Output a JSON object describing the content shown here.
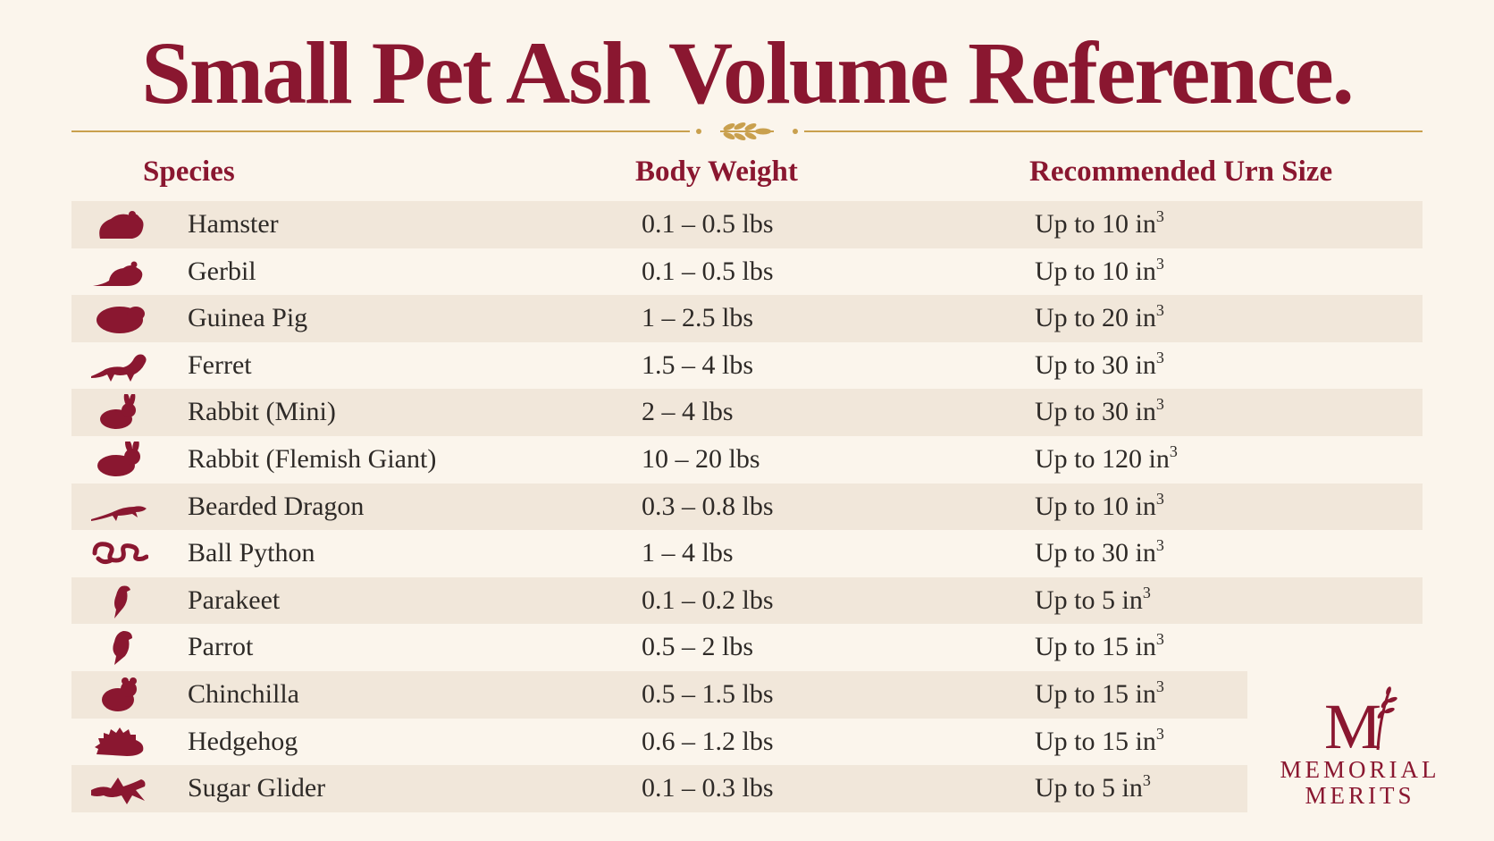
{
  "title": "Small Pet Ash Volume Reference.",
  "columns": {
    "species": "Species",
    "weight": "Body Weight",
    "urn": "Recommended Urn Size"
  },
  "unit_superscript": "3",
  "rows": [
    {
      "species": "Hamster",
      "icon": "hamster-icon",
      "weight": "0.1 – 0.5 lbs",
      "urn": "Up to 10 in"
    },
    {
      "species": "Gerbil",
      "icon": "gerbil-icon",
      "weight": "0.1 – 0.5 lbs",
      "urn": "Up to 10 in"
    },
    {
      "species": "Guinea Pig",
      "icon": "guinea-pig-icon",
      "weight": "1 – 2.5 lbs",
      "urn": "Up to 20 in"
    },
    {
      "species": "Ferret",
      "icon": "ferret-icon",
      "weight": "1.5 – 4 lbs",
      "urn": "Up to 30 in"
    },
    {
      "species": "Rabbit (Mini)",
      "icon": "rabbit-mini-icon",
      "weight": "2 – 4 lbs",
      "urn": "Up to 30 in"
    },
    {
      "species": "Rabbit (Flemish Giant)",
      "icon": "rabbit-giant-icon",
      "weight": "10 – 20 lbs",
      "urn": "Up to 120 in"
    },
    {
      "species": "Bearded Dragon",
      "icon": "bearded-dragon-icon",
      "weight": "0.3 – 0.8 lbs",
      "urn": "Up to 10 in"
    },
    {
      "species": "Ball Python",
      "icon": "snake-icon",
      "weight": "1 – 4 lbs",
      "urn": "Up to 30 in"
    },
    {
      "species": "Parakeet",
      "icon": "parakeet-icon",
      "weight": "0.1 – 0.2 lbs",
      "urn": "Up to 5 in"
    },
    {
      "species": "Parrot",
      "icon": "parrot-icon",
      "weight": "0.5 – 2 lbs",
      "urn": "Up to 15 in"
    },
    {
      "species": "Chinchilla",
      "icon": "chinchilla-icon",
      "weight": "0.5 – 1.5 lbs",
      "urn": "Up to 15 in"
    },
    {
      "species": "Hedgehog",
      "icon": "hedgehog-icon",
      "weight": "0.6 – 1.2 lbs",
      "urn": "Up to 15 in"
    },
    {
      "species": "Sugar Glider",
      "icon": "sugar-glider-icon",
      "weight": "0.1 – 0.3 lbs",
      "urn": "Up to 5 in"
    }
  ],
  "logo": {
    "monogram": "M",
    "line1": "MEMORIAL",
    "line2": "MERITS"
  },
  "colors": {
    "accent": "#8a1730",
    "gold": "#c9a04e",
    "background": "#fbf5ec",
    "row_shade": "#f1e7da"
  }
}
